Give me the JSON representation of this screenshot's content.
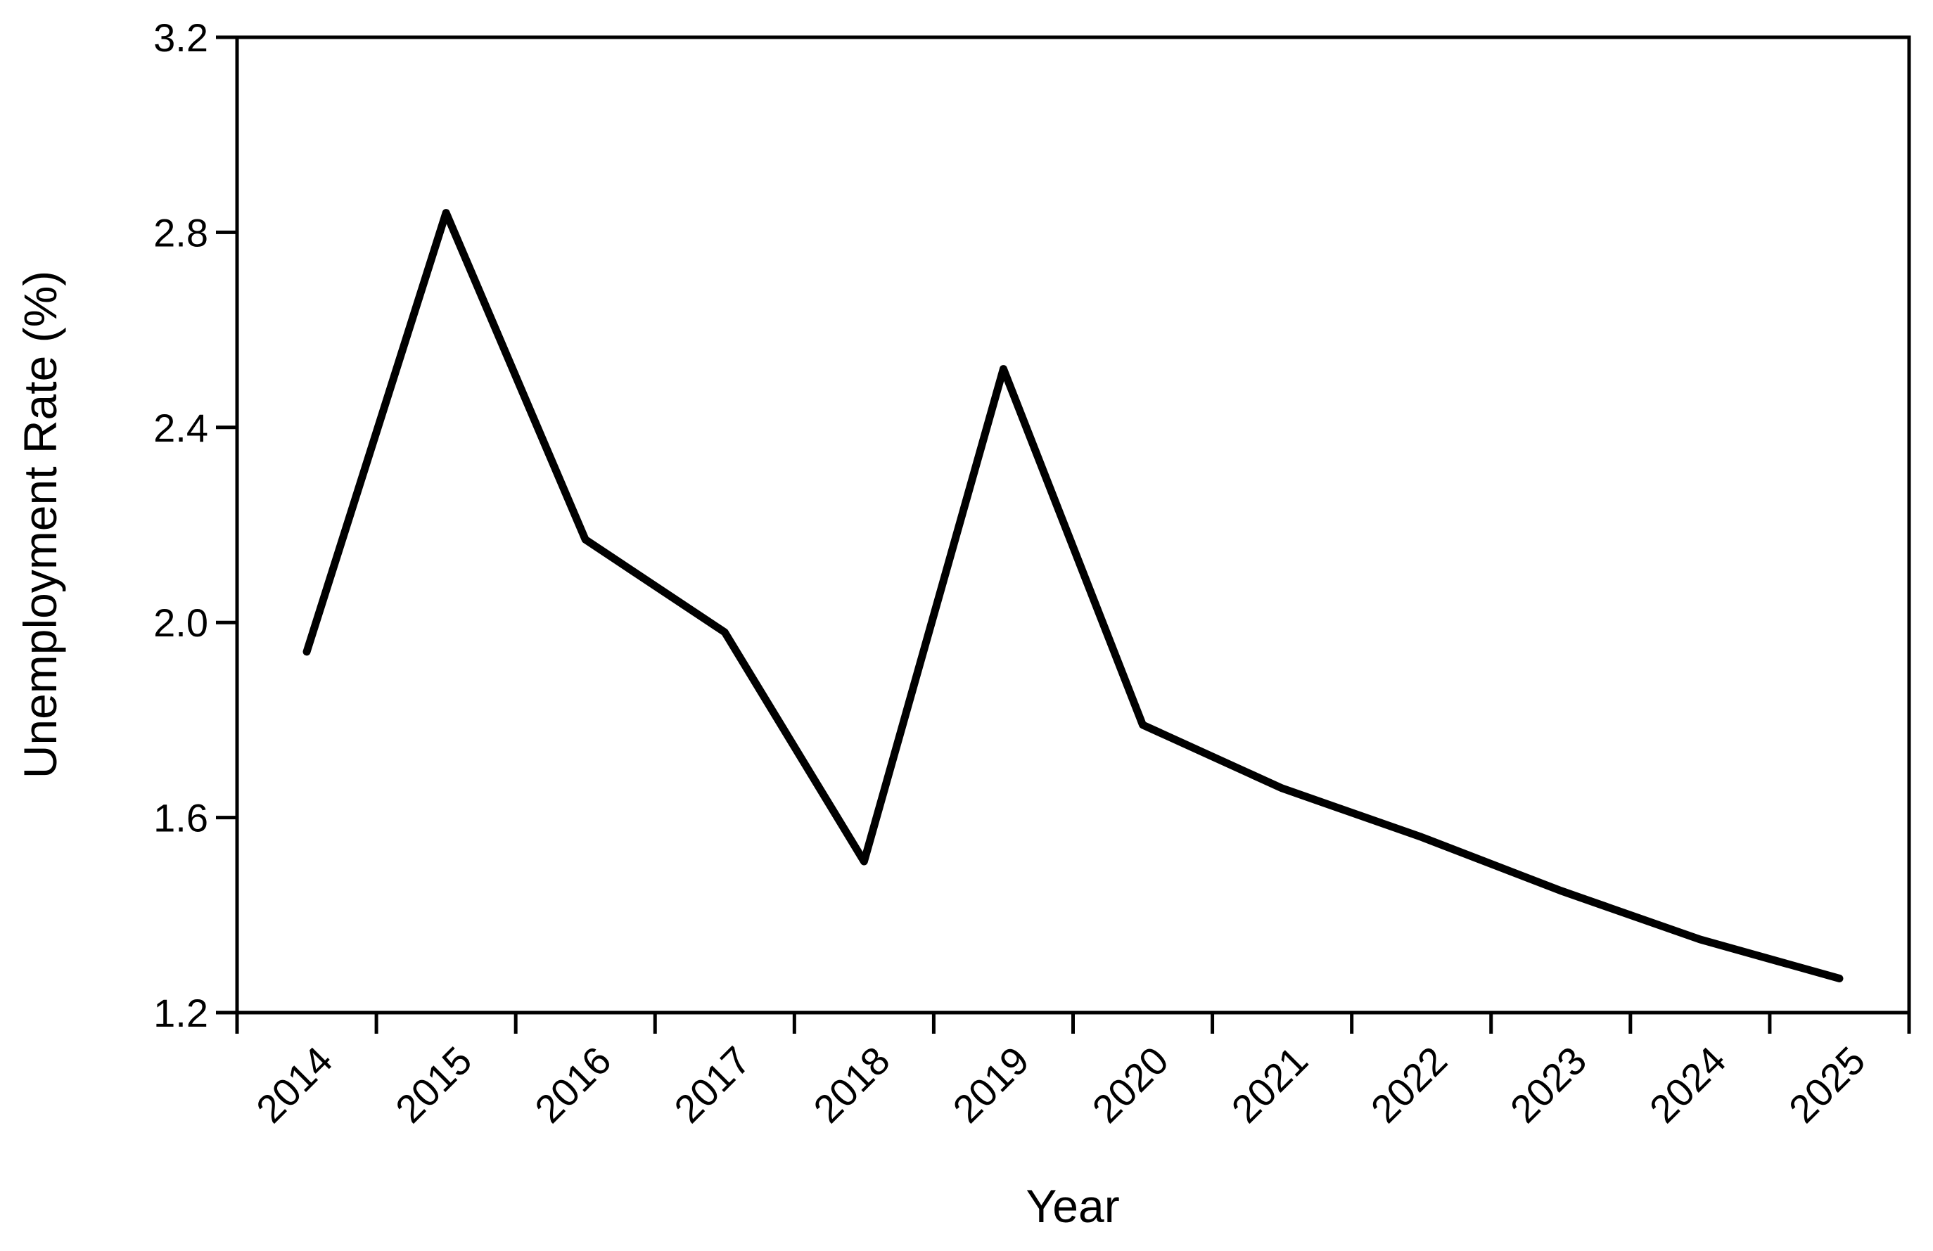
{
  "chart_data": {
    "type": "line",
    "title": "",
    "xlabel": "Year",
    "ylabel": "Unemployment Rate (%)",
    "categories": [
      "2014",
      "2015",
      "2016",
      "2017",
      "2018",
      "2019",
      "2020",
      "2021",
      "2022",
      "2023",
      "2024",
      "2025"
    ],
    "series": [
      {
        "name": "Unemployment Rate",
        "values": [
          1.94,
          2.84,
          2.17,
          1.98,
          1.51,
          2.52,
          1.79,
          1.66,
          1.56,
          1.45,
          1.35,
          1.27
        ]
      }
    ],
    "ylim": [
      1.2,
      3.2
    ],
    "yticks": [
      1.2,
      1.6,
      2.0,
      2.4,
      2.8,
      3.2
    ],
    "ytick_labels": [
      "1.2",
      "1.6",
      "2.0",
      "2.4",
      "2.8",
      "3.2"
    ],
    "xtick_style": "bin-edges-with-rotated-labels",
    "xlabel_rotation_deg": 45,
    "grid": false,
    "legend": "none",
    "line_color": "#000000",
    "frame_color": "#000000",
    "background_color": "#ffffff"
  }
}
